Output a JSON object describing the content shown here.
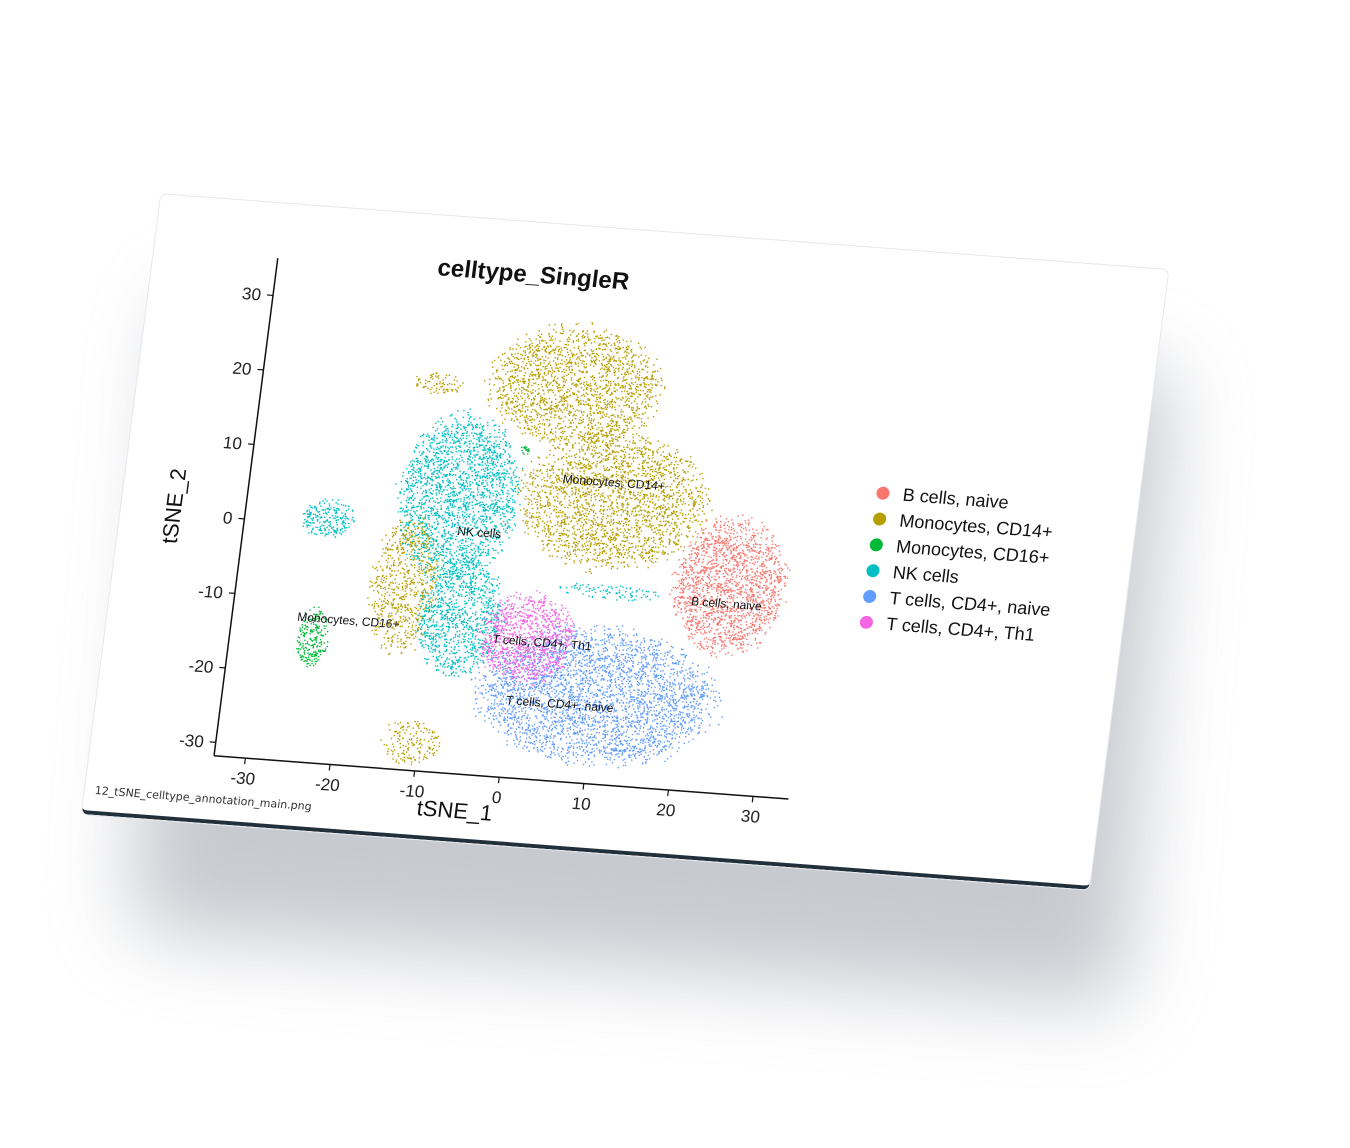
{
  "file_name": "12_tSNE_celltype_annotation_main.png",
  "chart_data": {
    "type": "scatter",
    "title": "celltype_SingleR",
    "xlabel": "tSNE_1",
    "ylabel": "tSNE_2",
    "xlim": [
      -33,
      33
    ],
    "ylim": [
      -31,
      33
    ],
    "xticks": [
      -30,
      -20,
      -10,
      0,
      10,
      20,
      30
    ],
    "yticks": [
      -30,
      -20,
      -10,
      0,
      10,
      20,
      30
    ],
    "grid": false,
    "legend_position": "right",
    "series": [
      {
        "name": "B cells, naive",
        "color": "#F8766D",
        "clusters": [
          {
            "cx": 24,
            "cy": -4,
            "rx": 6.5,
            "ry": 9,
            "n": 1700
          }
        ]
      },
      {
        "name": "Monocytes, CD14+",
        "color": "#B79F00",
        "clusters": [
          {
            "cx": 3,
            "cy": 21,
            "rx": 10,
            "ry": 8,
            "n": 1800
          },
          {
            "cx": 9,
            "cy": 6,
            "rx": 11,
            "ry": 9,
            "n": 2200
          },
          {
            "cx": -14,
            "cy": -7,
            "rx": 4,
            "ry": 9,
            "n": 700
          },
          {
            "cx": -11,
            "cy": -28,
            "rx": 3.5,
            "ry": 3,
            "n": 160
          },
          {
            "cx": -13,
            "cy": 20,
            "rx": 3,
            "ry": 1.5,
            "n": 80
          }
        ]
      },
      {
        "name": "Monocytes, CD16+",
        "color": "#00BA38",
        "clusters": [
          {
            "cx": -24,
            "cy": -15,
            "rx": 1.8,
            "ry": 4,
            "n": 220
          },
          {
            "cx": -2,
            "cy": 12,
            "rx": 0.6,
            "ry": 0.6,
            "n": 20
          }
        ]
      },
      {
        "name": "NK cells",
        "color": "#00BFC4",
        "clusters": [
          {
            "cx": -9,
            "cy": 5,
            "rx": 7,
            "ry": 11,
            "n": 2000
          },
          {
            "cx": -7,
            "cy": -11,
            "rx": 5,
            "ry": 8,
            "n": 1000
          },
          {
            "cx": -24,
            "cy": 1,
            "rx": 3,
            "ry": 2.5,
            "n": 220
          },
          {
            "cx": 10,
            "cy": -6,
            "rx": 6,
            "ry": 1,
            "n": 90
          }
        ]
      },
      {
        "name": "T cells, CD4+, naive",
        "color": "#619CFF",
        "clusters": [
          {
            "cx": 10,
            "cy": -20,
            "rx": 14,
            "ry": 9,
            "n": 3200
          }
        ]
      },
      {
        "name": "T cells, CD4+, Th1",
        "color": "#F564E3",
        "clusters": [
          {
            "cx": 1,
            "cy": -13,
            "rx": 5.5,
            "ry": 6,
            "n": 1000
          }
        ]
      }
    ],
    "cluster_labels": [
      {
        "text": "Monocytes, CD14+",
        "x": 9,
        "y": 8
      },
      {
        "text": "NK cells",
        "x": -6,
        "y": 0
      },
      {
        "text": "B cells, naive",
        "x": 24,
        "y": -7
      },
      {
        "text": "T cells, CD4+, Th1",
        "x": 3,
        "y": -14
      },
      {
        "text": "Monocytes, CD16+",
        "x": -20,
        "y": -13
      },
      {
        "text": "T cells, CD4+, naive",
        "x": 6,
        "y": -22
      }
    ]
  }
}
